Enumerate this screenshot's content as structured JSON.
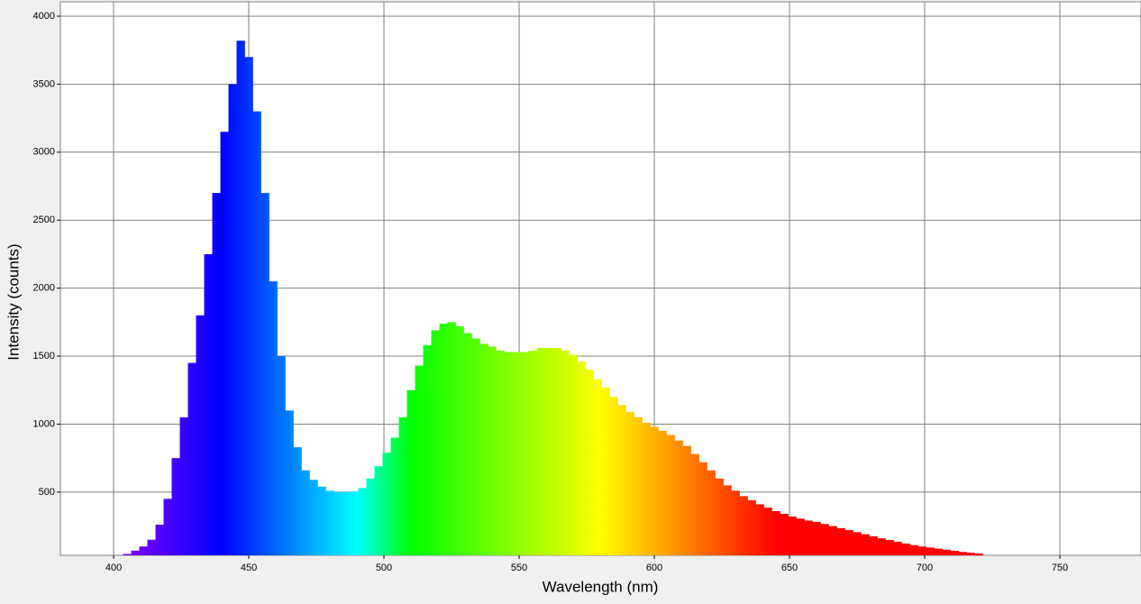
{
  "chart_data": {
    "type": "spectrum",
    "xlabel": "Wavelength (nm)",
    "ylabel": "Intensity (counts)",
    "x": [
      405,
      408,
      411,
      414,
      417,
      420,
      423,
      426,
      429,
      432,
      435,
      438,
      441,
      444,
      447,
      450,
      453,
      456,
      459,
      462,
      465,
      468,
      471,
      474,
      477,
      480,
      483,
      486,
      489,
      492,
      495,
      498,
      501,
      504,
      507,
      510,
      513,
      516,
      519,
      522,
      525,
      528,
      531,
      534,
      537,
      540,
      543,
      546,
      549,
      552,
      555,
      558,
      561,
      564,
      567,
      570,
      573,
      576,
      579,
      582,
      585,
      588,
      591,
      594,
      597,
      600,
      603,
      606,
      609,
      612,
      615,
      618,
      621,
      624,
      627,
      630,
      633,
      636,
      639,
      642,
      645,
      648,
      651,
      654,
      657,
      660,
      663,
      666,
      669,
      672,
      675,
      678,
      681,
      684,
      687,
      690,
      693,
      696,
      699,
      702,
      705,
      708,
      711,
      714,
      717,
      720
    ],
    "values": [
      45,
      70,
      100,
      150,
      260,
      450,
      750,
      1050,
      1450,
      1800,
      2250,
      2700,
      3150,
      3500,
      3820,
      3700,
      3300,
      2700,
      2050,
      1500,
      1100,
      830,
      660,
      590,
      540,
      510,
      500,
      500,
      505,
      530,
      600,
      690,
      790,
      900,
      1050,
      1250,
      1430,
      1580,
      1690,
      1740,
      1750,
      1720,
      1670,
      1630,
      1590,
      1570,
      1540,
      1530,
      1530,
      1530,
      1540,
      1560,
      1560,
      1560,
      1540,
      1510,
      1460,
      1400,
      1330,
      1270,
      1200,
      1140,
      1090,
      1050,
      1010,
      980,
      950,
      920,
      880,
      840,
      780,
      720,
      660,
      600,
      550,
      510,
      470,
      440,
      410,
      385,
      360,
      340,
      320,
      305,
      290,
      280,
      265,
      250,
      235,
      220,
      205,
      190,
      175,
      160,
      148,
      135,
      122,
      110,
      100,
      92,
      84,
      76,
      68,
      60,
      54,
      48
    ],
    "color_stops": [
      {
        "x": 405,
        "color": "#8000ff"
      },
      {
        "x": 440,
        "color": "#0000ff"
      },
      {
        "x": 490,
        "color": "#00ffff"
      },
      {
        "x": 510,
        "color": "#00ff00"
      },
      {
        "x": 580,
        "color": "#ffff00"
      },
      {
        "x": 645,
        "color": "#ff0000"
      }
    ],
    "xlim": [
      380.33,
      780
    ],
    "ylim": [
      35,
      4106
    ],
    "xticks": [
      400,
      450,
      500,
      550,
      600,
      650,
      700,
      750
    ],
    "yticks": [
      500,
      1000,
      1500,
      2000,
      2500,
      3000,
      3500,
      4000
    ],
    "grid": true
  }
}
